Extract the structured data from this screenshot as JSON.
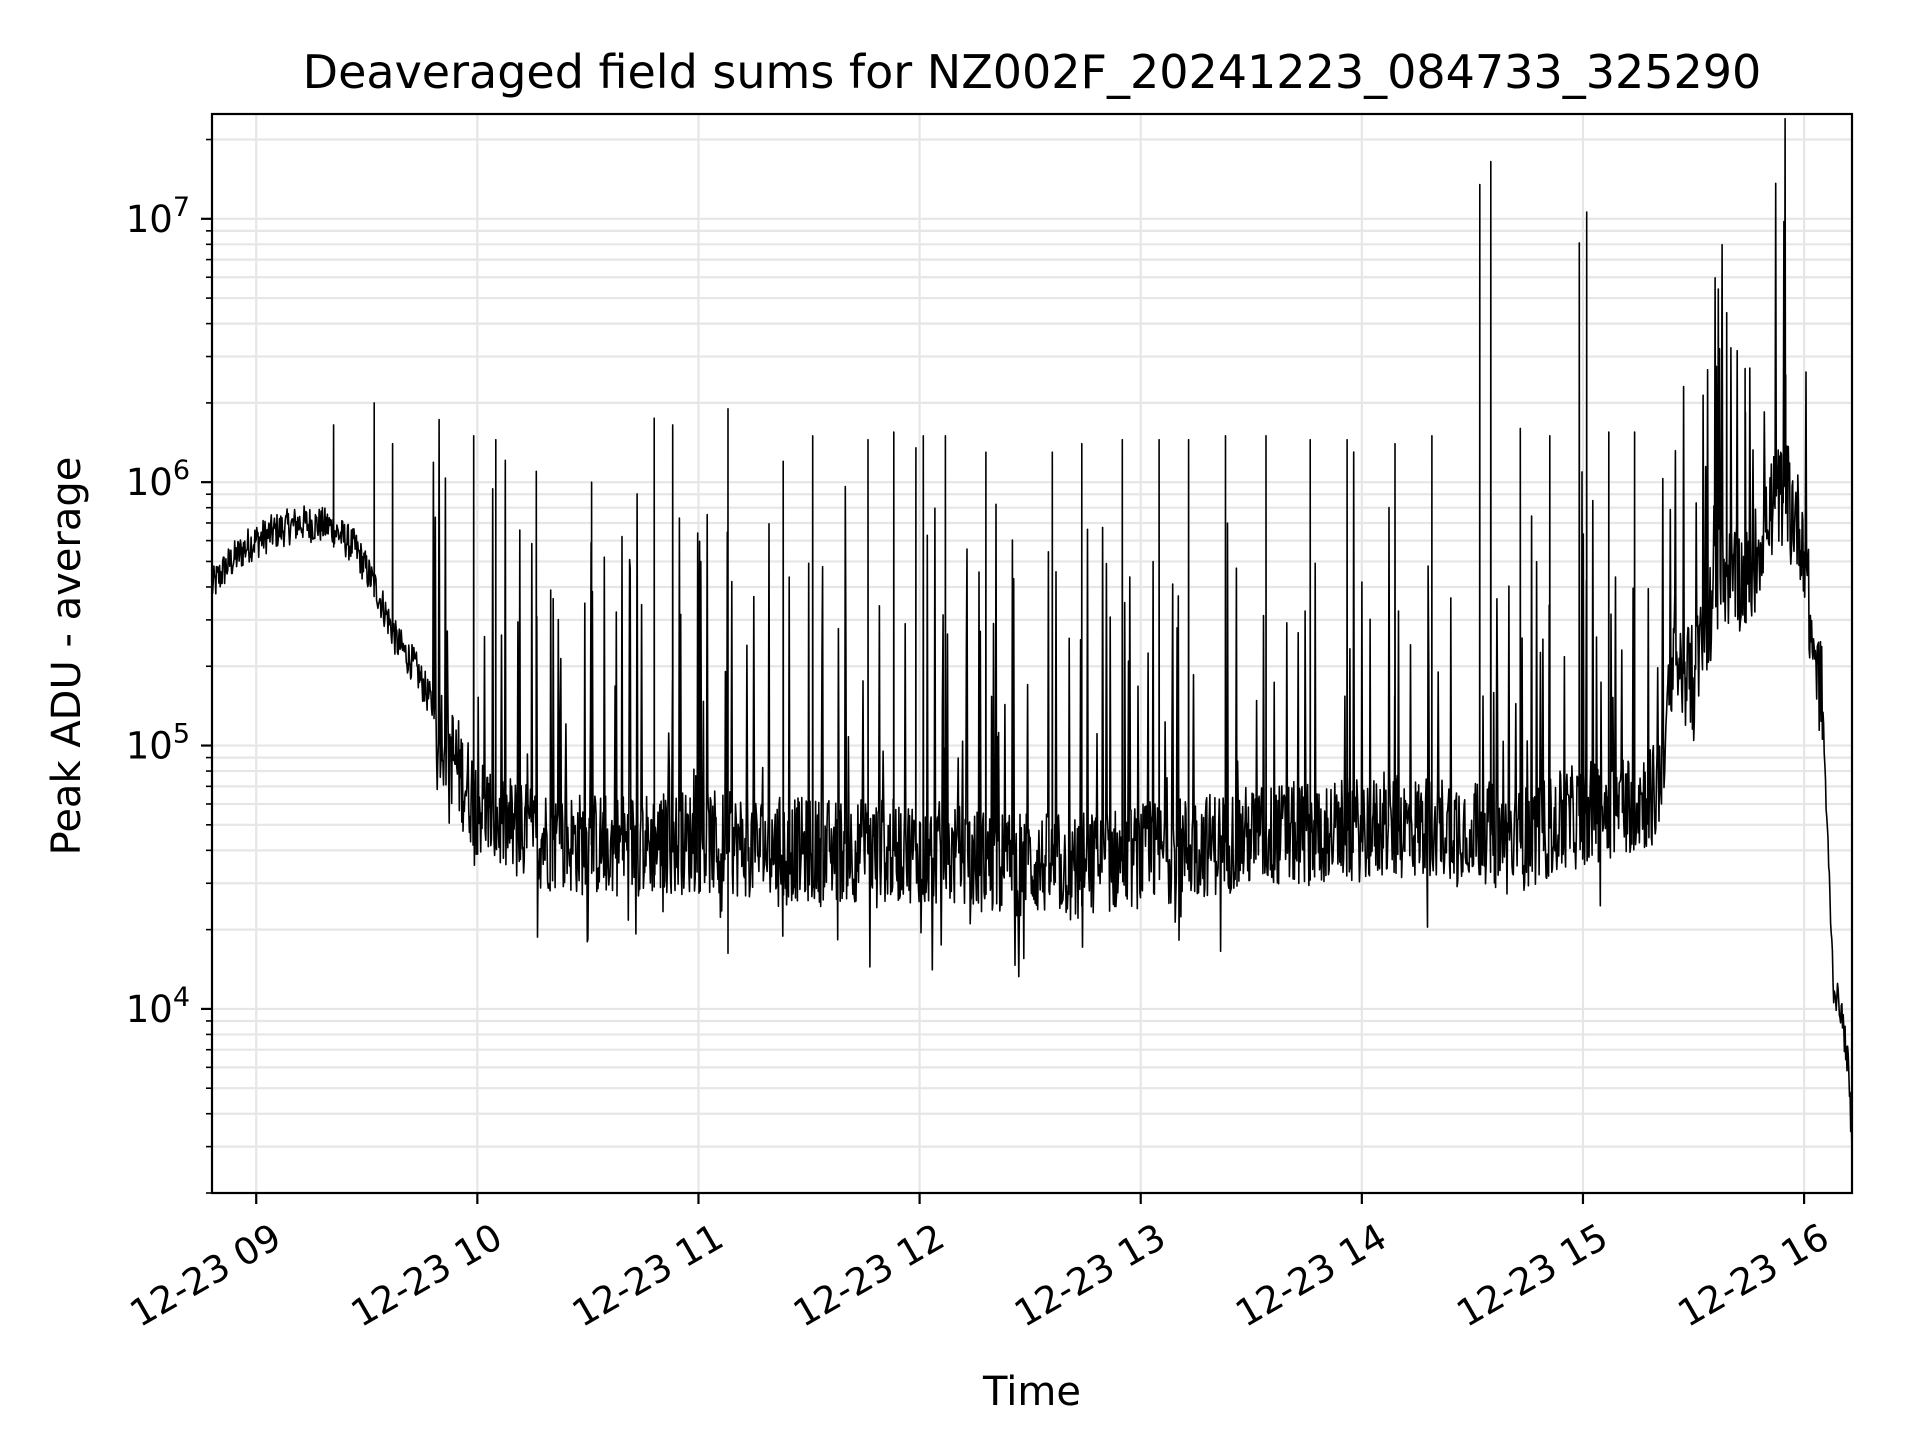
{
  "chart_data": {
    "type": "line",
    "title": "Deaveraged field sums for NZ002F_20241223_084733_325290",
    "xlabel": "Time",
    "ylabel": "Peak ADU - average",
    "y_scale": "log",
    "grid": true,
    "grid_minor": true,
    "legend": "none",
    "line_color": "#000000",
    "grid_color": "#e6e6e6",
    "xlim": [
      "12-23 08:48",
      "12-23 16:13"
    ],
    "ylim": [
      2000,
      25000000
    ],
    "x_ticks": [
      {
        "value": "12-23 09",
        "label": "12-23 09"
      },
      {
        "value": "12-23 10",
        "label": "12-23 10"
      },
      {
        "value": "12-23 11",
        "label": "12-23 11"
      },
      {
        "value": "12-23 12",
        "label": "12-23 12"
      },
      {
        "value": "12-23 13",
        "label": "12-23 13"
      },
      {
        "value": "12-23 14",
        "label": "12-23 14"
      },
      {
        "value": "12-23 15",
        "label": "12-23 15"
      },
      {
        "value": "12-23 16",
        "label": "12-23 16"
      }
    ],
    "y_ticks": [
      {
        "value": 10000,
        "base": "10",
        "exp": "4"
      },
      {
        "value": 100000,
        "base": "10",
        "exp": "5"
      },
      {
        "value": 1000000,
        "base": "10",
        "exp": "6"
      },
      {
        "value": 10000000,
        "base": "10",
        "exp": "7"
      }
    ],
    "series": [
      {
        "baseline": [
          [
            "12-23 08:48",
            400000
          ],
          [
            "12-23 08:52",
            480000
          ],
          [
            "12-23 08:58",
            580000
          ],
          [
            "12-23 09:05",
            650000
          ],
          [
            "12-23 09:12",
            700000
          ],
          [
            "12-23 09:20",
            680000
          ],
          [
            "12-23 09:27",
            560000
          ],
          [
            "12-23 09:33",
            380000
          ],
          [
            "12-23 09:38",
            250000
          ],
          [
            "12-23 09:43",
            200000
          ],
          [
            "12-23 09:48",
            140000
          ],
          [
            "12-23 09:52",
            100000
          ],
          [
            "12-23 09:56",
            75000
          ],
          [
            "12-23 10:00",
            60000
          ],
          [
            "12-23 10:05",
            52000
          ],
          [
            "12-23 10:15",
            45000
          ],
          [
            "12-23 10:30",
            42000
          ],
          [
            "12-23 11:00",
            43000
          ],
          [
            "12-23 11:30",
            40000
          ],
          [
            "12-23 12:00",
            40000
          ],
          [
            "12-23 12:20",
            36000
          ],
          [
            "12-23 12:40",
            35000
          ],
          [
            "12-23 13:00",
            38000
          ],
          [
            "12-23 13:30",
            45000
          ],
          [
            "12-23 14:00",
            48000
          ],
          [
            "12-23 14:30",
            50000
          ],
          [
            "12-23 14:40",
            42000
          ],
          [
            "12-23 15:00",
            55000
          ],
          [
            "12-23 15:20",
            65000
          ],
          [
            "12-23 15:25",
            200000
          ],
          [
            "12-23 15:30",
            180000
          ],
          [
            "12-23 15:37",
            450000
          ],
          [
            "12-23 15:45",
            420000
          ],
          [
            "12-23 15:50",
            750000
          ],
          [
            "12-23 15:55",
            950000
          ],
          [
            "12-23 16:00",
            600000
          ],
          [
            "12-23 16:02",
            250000
          ],
          [
            "12-23 16:05",
            150000
          ],
          [
            "12-23 16:06",
            60000
          ],
          [
            "12-23 16:08",
            12000
          ],
          [
            "12-23 16:10",
            10000
          ],
          [
            "12-23 16:12",
            6000
          ],
          [
            "12-23 16:13",
            3000
          ]
        ],
        "spikes": [
          [
            "12-23 09:21",
            1650000
          ],
          [
            "12-23 09:32",
            2000000
          ],
          [
            "12-23 09:37",
            1400000
          ],
          [
            "12-23 09:59",
            1500000
          ],
          [
            "12-23 10:05",
            1450000
          ],
          [
            "12-23 10:16",
            1100000
          ],
          [
            "12-23 10:31",
            1000000
          ],
          [
            "12-23 10:48",
            1750000
          ],
          [
            "12-23 10:53",
            1650000
          ],
          [
            "12-23 11:08",
            1900000
          ],
          [
            "12-23 11:23",
            1200000
          ],
          [
            "12-23 11:31",
            1500000
          ],
          [
            "12-23 11:46",
            1450000
          ],
          [
            "12-23 11:53",
            1550000
          ],
          [
            "12-23 11:59",
            1350000
          ],
          [
            "12-23 12:01",
            1500000
          ],
          [
            "12-23 12:07",
            1500000
          ],
          [
            "12-23 12:18",
            1300000
          ],
          [
            "12-23 12:36",
            1300000
          ],
          [
            "12-23 12:44",
            1400000
          ],
          [
            "12-23 12:55",
            1450000
          ],
          [
            "12-23 13:05",
            1450000
          ],
          [
            "12-23 13:13",
            1450000
          ],
          [
            "12-23 13:23",
            1500000
          ],
          [
            "12-23 13:34",
            1500000
          ],
          [
            "12-23 13:46",
            1450000
          ],
          [
            "12-23 13:56",
            1450000
          ],
          [
            "12-23 14:09",
            1400000
          ],
          [
            "12-23 14:19",
            1500000
          ],
          [
            "12-23 14:32",
            13500000
          ],
          [
            "12-23 14:35",
            16500000
          ],
          [
            "12-23 14:43",
            1600000
          ],
          [
            "12-23 14:51",
            1500000
          ],
          [
            "12-23 14:59",
            8100000
          ],
          [
            "12-23 15:01",
            10600000
          ],
          [
            "12-23 15:07",
            1550000
          ],
          [
            "12-23 15:14",
            1550000
          ],
          [
            "12-23 15:39",
            4400000
          ],
          [
            "12-23 15:44",
            2700000
          ],
          [
            "12-23 15:55",
            2550000
          ]
        ]
      }
    ]
  }
}
